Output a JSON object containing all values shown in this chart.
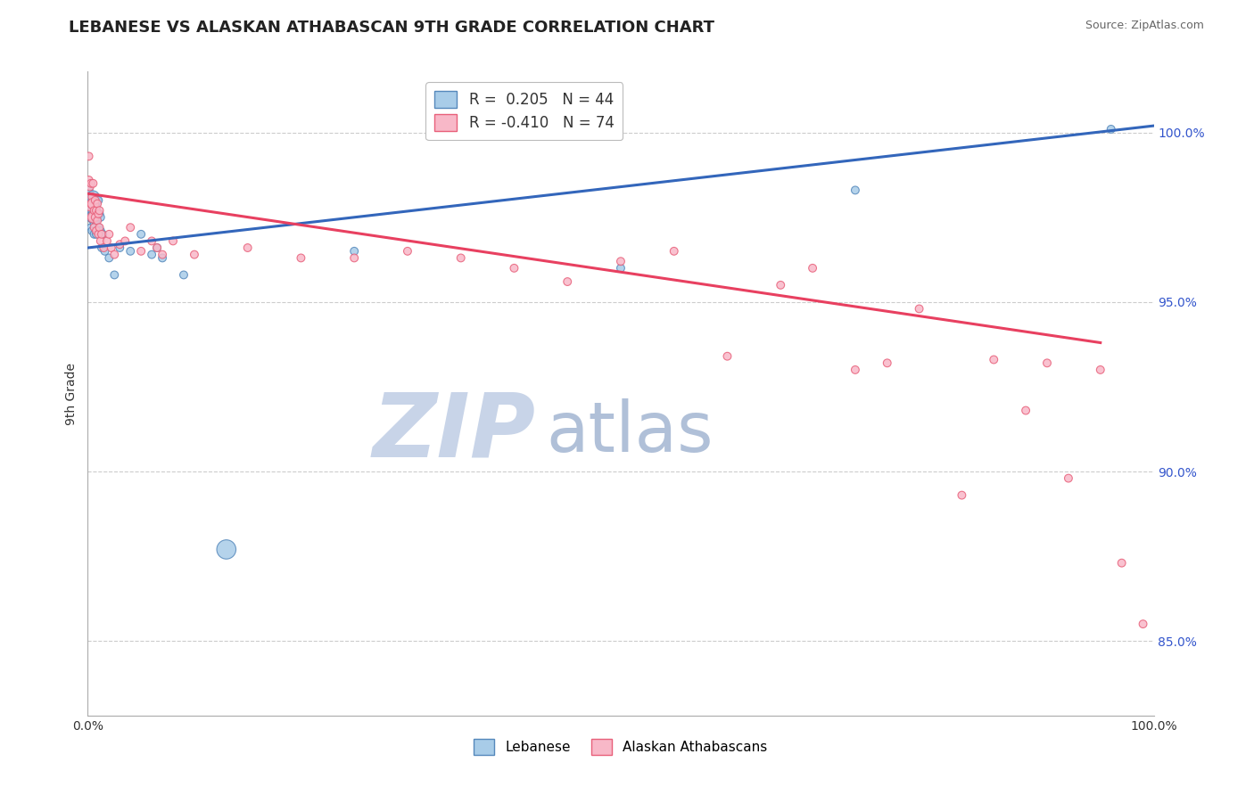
{
  "title": "LEBANESE VS ALASKAN ATHABASCAN 9TH GRADE CORRELATION CHART",
  "source": "Source: ZipAtlas.com",
  "ylabel": "9th Grade",
  "y_ticks": [
    0.85,
    0.9,
    0.95,
    1.0
  ],
  "y_tick_labels": [
    "85.0%",
    "90.0%",
    "95.0%",
    "100.0%"
  ],
  "x_min": 0.0,
  "x_max": 1.0,
  "y_min": 0.828,
  "y_max": 1.018,
  "blue_R": 0.205,
  "blue_N": 44,
  "pink_R": -0.41,
  "pink_N": 74,
  "blue_fill": "#a8cce8",
  "blue_edge": "#5588bb",
  "pink_fill": "#f8b8c8",
  "pink_edge": "#e8607a",
  "blue_line_color": "#3366bb",
  "pink_line_color": "#e84060",
  "blue_points_x": [
    0.001,
    0.002,
    0.002,
    0.003,
    0.003,
    0.004,
    0.004,
    0.005,
    0.005,
    0.006,
    0.006,
    0.006,
    0.007,
    0.007,
    0.008,
    0.008,
    0.008,
    0.009,
    0.009,
    0.01,
    0.01,
    0.01,
    0.011,
    0.011,
    0.012,
    0.012,
    0.013,
    0.014,
    0.016,
    0.02,
    0.025,
    0.03,
    0.04,
    0.05,
    0.06,
    0.065,
    0.07,
    0.09,
    0.13,
    0.25,
    0.5,
    0.72,
    0.96
  ],
  "blue_points_y": [
    0.983,
    0.975,
    0.982,
    0.972,
    0.977,
    0.971,
    0.977,
    0.975,
    0.981,
    0.97,
    0.973,
    0.979,
    0.974,
    0.979,
    0.97,
    0.974,
    0.978,
    0.975,
    0.98,
    0.972,
    0.976,
    0.98,
    0.971,
    0.976,
    0.971,
    0.975,
    0.966,
    0.97,
    0.965,
    0.963,
    0.958,
    0.966,
    0.965,
    0.97,
    0.964,
    0.966,
    0.963,
    0.958,
    0.877,
    0.965,
    0.96,
    0.983,
    1.001
  ],
  "blue_points_size": [
    40,
    40,
    40,
    40,
    40,
    40,
    40,
    100,
    100,
    40,
    40,
    40,
    40,
    40,
    40,
    40,
    40,
    40,
    40,
    40,
    40,
    40,
    40,
    40,
    40,
    40,
    40,
    40,
    40,
    40,
    40,
    40,
    40,
    40,
    40,
    40,
    40,
    40,
    240,
    40,
    40,
    40,
    40
  ],
  "pink_points_x": [
    0.001,
    0.001,
    0.002,
    0.002,
    0.003,
    0.003,
    0.004,
    0.004,
    0.005,
    0.005,
    0.005,
    0.006,
    0.006,
    0.007,
    0.007,
    0.008,
    0.008,
    0.009,
    0.009,
    0.01,
    0.01,
    0.011,
    0.011,
    0.012,
    0.013,
    0.015,
    0.018,
    0.02,
    0.022,
    0.025,
    0.03,
    0.035,
    0.04,
    0.05,
    0.06,
    0.065,
    0.07,
    0.08,
    0.1,
    0.15,
    0.2,
    0.25,
    0.3,
    0.35,
    0.4,
    0.45,
    0.5,
    0.55,
    0.6,
    0.65,
    0.68,
    0.72,
    0.75,
    0.78,
    0.82,
    0.85,
    0.88,
    0.9,
    0.92,
    0.95,
    0.97,
    0.99
  ],
  "pink_points_y": [
    0.986,
    0.993,
    0.978,
    0.984,
    0.979,
    0.985,
    0.975,
    0.981,
    0.975,
    0.979,
    0.985,
    0.972,
    0.977,
    0.975,
    0.98,
    0.971,
    0.977,
    0.974,
    0.979,
    0.97,
    0.976,
    0.972,
    0.977,
    0.968,
    0.97,
    0.966,
    0.968,
    0.97,
    0.966,
    0.964,
    0.967,
    0.968,
    0.972,
    0.965,
    0.968,
    0.966,
    0.964,
    0.968,
    0.964,
    0.966,
    0.963,
    0.963,
    0.965,
    0.963,
    0.96,
    0.956,
    0.962,
    0.965,
    0.934,
    0.955,
    0.96,
    0.93,
    0.932,
    0.948,
    0.893,
    0.933,
    0.918,
    0.932,
    0.898,
    0.93,
    0.873,
    0.855
  ],
  "pink_points_size": [
    40,
    40,
    40,
    40,
    40,
    40,
    40,
    40,
    80,
    80,
    40,
    40,
    40,
    40,
    40,
    40,
    40,
    40,
    40,
    40,
    40,
    40,
    40,
    40,
    40,
    40,
    40,
    40,
    40,
    40,
    40,
    40,
    40,
    40,
    40,
    40,
    40,
    40,
    40,
    40,
    40,
    40,
    40,
    40,
    40,
    40,
    40,
    40,
    40,
    40,
    40,
    40,
    40,
    40,
    40,
    40,
    40,
    40,
    40,
    40,
    40,
    40
  ],
  "blue_line_x0": 0.0,
  "blue_line_x1": 1.0,
  "blue_line_y0": 0.966,
  "blue_line_y1": 1.002,
  "pink_line_x0": 0.0,
  "pink_line_x1": 0.95,
  "pink_line_y0": 0.982,
  "pink_line_y1": 0.938,
  "watermark_zip": "ZIP",
  "watermark_atlas": "atlas",
  "watermark_color_zip": "#c8d4e8",
  "watermark_color_atlas": "#b0c0d8",
  "grid_color": "#cccccc",
  "background_color": "#ffffff",
  "legend_R_color_blue": "#3399ff",
  "legend_R_color_pink": "#ff3366",
  "legend_N_color": "#333333"
}
